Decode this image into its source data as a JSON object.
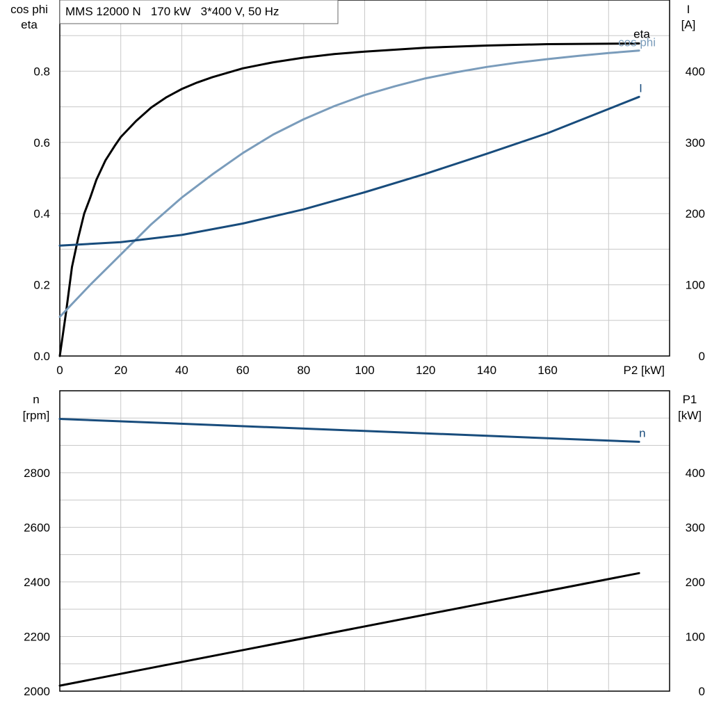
{
  "header": {
    "title": "MMS 12000 N   170 kW   3*400 V, 50 Hz"
  },
  "colors": {
    "eta": "#000000",
    "cos_phi": "#7a9cbb",
    "current": "#184c7c",
    "speed": "#184c7c",
    "p1": "#000000",
    "grid": "#c8c8c8"
  },
  "chart_data": [
    {
      "type": "line",
      "xlabel": "P2 [kW]",
      "xlim": [
        0,
        200
      ],
      "xticks": [
        0,
        20,
        40,
        60,
        80,
        100,
        120,
        140,
        160
      ],
      "ylabel_left": [
        "cos phi",
        "eta"
      ],
      "ylim_left": [
        0,
        1.0
      ],
      "yticks_left": [
        "0.0",
        "0.2",
        "0.4",
        "0.6",
        "0.8"
      ],
      "ylabel_right": [
        "I",
        "[A]"
      ],
      "ylim_right": [
        0,
        500
      ],
      "yticks_right": [
        "0",
        "100",
        "200",
        "300",
        "400"
      ],
      "grid": true,
      "series": [
        {
          "name": "eta",
          "axis": "left",
          "x": [
            0,
            2,
            4,
            6,
            8,
            10,
            12,
            15,
            18,
            20,
            25,
            30,
            35,
            40,
            45,
            50,
            60,
            70,
            80,
            90,
            100,
            120,
            140,
            160,
            190
          ],
          "y": [
            0.0,
            0.12,
            0.25,
            0.33,
            0.4,
            0.445,
            0.495,
            0.55,
            0.59,
            0.615,
            0.66,
            0.698,
            0.727,
            0.75,
            0.768,
            0.783,
            0.808,
            0.825,
            0.838,
            0.848,
            0.855,
            0.866,
            0.872,
            0.876,
            0.878
          ]
        },
        {
          "name": "cos phi",
          "axis": "left",
          "x": [
            0,
            10,
            20,
            30,
            40,
            50,
            60,
            70,
            80,
            90,
            100,
            110,
            120,
            130,
            140,
            150,
            160,
            170,
            180,
            190
          ],
          "y": [
            0.11,
            0.2,
            0.285,
            0.37,
            0.445,
            0.51,
            0.57,
            0.622,
            0.665,
            0.702,
            0.733,
            0.758,
            0.78,
            0.797,
            0.812,
            0.824,
            0.834,
            0.843,
            0.851,
            0.858
          ]
        },
        {
          "name": "I",
          "axis": "right",
          "x": [
            0,
            20,
            40,
            60,
            80,
            100,
            120,
            140,
            160,
            190
          ],
          "y": [
            155,
            160,
            170,
            186,
            206,
            230,
            256,
            284,
            313,
            364
          ]
        }
      ]
    },
    {
      "type": "line",
      "xlim": [
        0,
        200
      ],
      "ylabel_left": [
        "n",
        "[rpm]"
      ],
      "ylim_left": [
        2000,
        3100
      ],
      "yticks_left": [
        "2000",
        "2200",
        "2400",
        "2600",
        "2800"
      ],
      "ylabel_right": [
        "P1",
        "[kW]"
      ],
      "ylim_right": [
        0,
        550
      ],
      "yticks_right": [
        "0",
        "100",
        "200",
        "300",
        "400"
      ],
      "grid": true,
      "series": [
        {
          "name": "n",
          "axis": "left",
          "x": [
            0,
            190
          ],
          "y": [
            2997,
            2913
          ]
        },
        {
          "axis": "right",
          "x": [
            0,
            190
          ],
          "y": [
            10,
            216
          ]
        }
      ]
    }
  ]
}
